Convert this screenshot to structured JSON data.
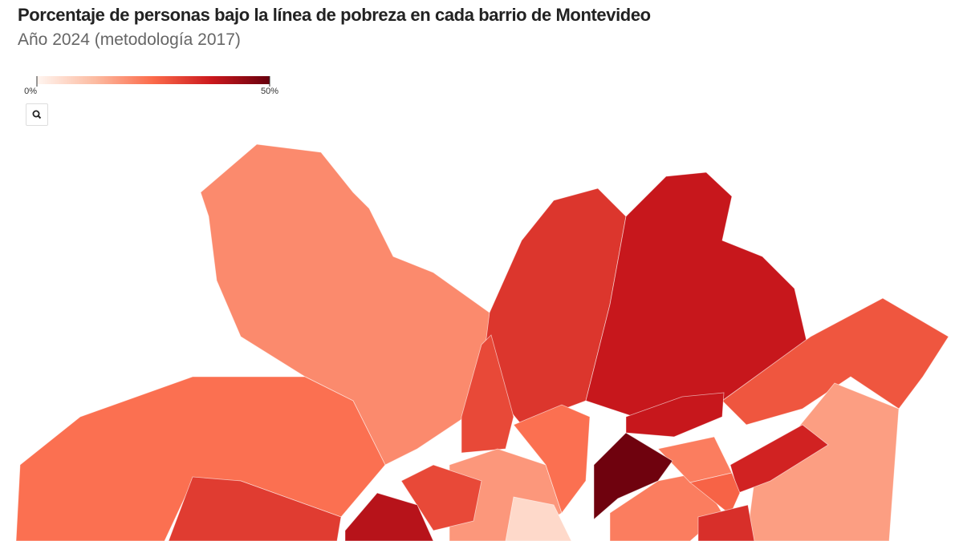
{
  "map": {
    "type": "choropleth",
    "title": "Porcentaje de personas bajo la línea de pobreza en cada barrio de Montevideo",
    "subtitle": "Año 2024 (metodología 2017)",
    "scale": {
      "ticks": [
        {
          "value": 0,
          "label": "0%"
        },
        {
          "value": 50,
          "label": "50%"
        }
      ],
      "colors": [
        "#fff5f0",
        "#fcbba1",
        "#fb6a4a",
        "#cb181d",
        "#67000d"
      ]
    },
    "regions": [
      20,
      24,
      32,
      33,
      38,
      28,
      17,
      30,
      18,
      30,
      24,
      22,
      40,
      38,
      36,
      22,
      26,
      34,
      6,
      49
    ]
  }
}
